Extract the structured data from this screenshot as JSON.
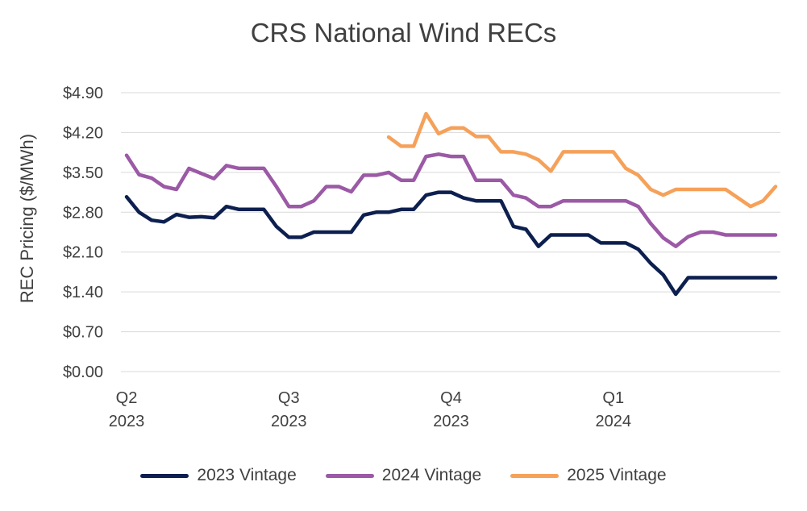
{
  "chart_data": {
    "type": "line",
    "title": "CRS National Wind RECs",
    "xlabel": "",
    "ylabel": "REC Pricing ($/MWh)",
    "ylim": [
      0,
      4.9
    ],
    "y_ticks": [
      0,
      0.7,
      1.4,
      2.1,
      2.8,
      3.5,
      4.2,
      4.9
    ],
    "y_tick_labels": [
      "$0.00",
      "$0.70",
      "$1.40",
      "$2.10",
      "$2.80",
      "$3.50",
      "$4.20",
      "$4.90"
    ],
    "x_range": [
      0,
      52
    ],
    "x_ticks": [
      {
        "x": 0,
        "line1": "Q2",
        "line2": "2023"
      },
      {
        "x": 13,
        "line1": "Q3",
        "line2": "2023"
      },
      {
        "x": 26,
        "line1": "Q4",
        "line2": "2023"
      },
      {
        "x": 39,
        "line1": "Q1",
        "line2": "2024"
      }
    ],
    "series": [
      {
        "name": "2023 Vintage",
        "color": "#0c1f4f",
        "points": [
          [
            0,
            3.07
          ],
          [
            1,
            2.8
          ],
          [
            2,
            2.66
          ],
          [
            3,
            2.63
          ],
          [
            4,
            2.76
          ],
          [
            5,
            2.71
          ],
          [
            6,
            2.72
          ],
          [
            7,
            2.7
          ],
          [
            8,
            2.9
          ],
          [
            9,
            2.85
          ],
          [
            10,
            2.85
          ],
          [
            11,
            2.85
          ],
          [
            12,
            2.55
          ],
          [
            13,
            2.36
          ],
          [
            14,
            2.36
          ],
          [
            15,
            2.45
          ],
          [
            16,
            2.45
          ],
          [
            17,
            2.45
          ],
          [
            18,
            2.45
          ],
          [
            19,
            2.75
          ],
          [
            20,
            2.8
          ],
          [
            21,
            2.8
          ],
          [
            22,
            2.85
          ],
          [
            23,
            2.85
          ],
          [
            24,
            3.1
          ],
          [
            25,
            3.15
          ],
          [
            26,
            3.15
          ],
          [
            27,
            3.05
          ],
          [
            28,
            3.0
          ],
          [
            29,
            3.0
          ],
          [
            30,
            3.0
          ],
          [
            31,
            2.55
          ],
          [
            32,
            2.5
          ],
          [
            33,
            2.2
          ],
          [
            34,
            2.4
          ],
          [
            35,
            2.4
          ],
          [
            36,
            2.4
          ],
          [
            37,
            2.4
          ],
          [
            38,
            2.26
          ],
          [
            39,
            2.26
          ],
          [
            40,
            2.26
          ],
          [
            41,
            2.15
          ],
          [
            42,
            1.9
          ],
          [
            43,
            1.7
          ],
          [
            44,
            1.36
          ],
          [
            45,
            1.65
          ],
          [
            46,
            1.65
          ],
          [
            47,
            1.65
          ],
          [
            48,
            1.65
          ],
          [
            49,
            1.65
          ],
          [
            50,
            1.65
          ],
          [
            51,
            1.65
          ],
          [
            52,
            1.65
          ]
        ]
      },
      {
        "name": "2024 Vintage",
        "color": "#9b59a6",
        "points": [
          [
            0,
            3.8
          ],
          [
            1,
            3.46
          ],
          [
            2,
            3.4
          ],
          [
            3,
            3.25
          ],
          [
            4,
            3.2
          ],
          [
            5,
            3.57
          ],
          [
            6,
            3.48
          ],
          [
            7,
            3.39
          ],
          [
            8,
            3.62
          ],
          [
            9,
            3.57
          ],
          [
            10,
            3.57
          ],
          [
            11,
            3.57
          ],
          [
            12,
            3.25
          ],
          [
            13,
            2.9
          ],
          [
            14,
            2.9
          ],
          [
            15,
            3.0
          ],
          [
            16,
            3.25
          ],
          [
            17,
            3.25
          ],
          [
            18,
            3.16
          ],
          [
            19,
            3.45
          ],
          [
            20,
            3.45
          ],
          [
            21,
            3.5
          ],
          [
            22,
            3.36
          ],
          [
            23,
            3.36
          ],
          [
            24,
            3.78
          ],
          [
            25,
            3.82
          ],
          [
            26,
            3.78
          ],
          [
            27,
            3.78
          ],
          [
            28,
            3.36
          ],
          [
            29,
            3.36
          ],
          [
            30,
            3.36
          ],
          [
            31,
            3.1
          ],
          [
            32,
            3.05
          ],
          [
            33,
            2.9
          ],
          [
            34,
            2.9
          ],
          [
            35,
            3.0
          ],
          [
            36,
            3.0
          ],
          [
            37,
            3.0
          ],
          [
            38,
            3.0
          ],
          [
            39,
            3.0
          ],
          [
            40,
            3.0
          ],
          [
            41,
            2.9
          ],
          [
            42,
            2.6
          ],
          [
            43,
            2.35
          ],
          [
            44,
            2.2
          ],
          [
            45,
            2.37
          ],
          [
            46,
            2.45
          ],
          [
            47,
            2.45
          ],
          [
            48,
            2.4
          ],
          [
            49,
            2.4
          ],
          [
            50,
            2.4
          ],
          [
            51,
            2.4
          ],
          [
            52,
            2.4
          ]
        ]
      },
      {
        "name": "2025 Vintage",
        "color": "#f5a15a",
        "points": [
          [
            21,
            4.12
          ],
          [
            22,
            3.96
          ],
          [
            23,
            3.96
          ],
          [
            24,
            4.53
          ],
          [
            25,
            4.18
          ],
          [
            26,
            4.28
          ],
          [
            27,
            4.28
          ],
          [
            28,
            4.13
          ],
          [
            29,
            4.13
          ],
          [
            30,
            3.86
          ],
          [
            31,
            3.86
          ],
          [
            32,
            3.82
          ],
          [
            33,
            3.72
          ],
          [
            34,
            3.52
          ],
          [
            35,
            3.86
          ],
          [
            36,
            3.86
          ],
          [
            37,
            3.86
          ],
          [
            38,
            3.86
          ],
          [
            39,
            3.86
          ],
          [
            40,
            3.57
          ],
          [
            41,
            3.45
          ],
          [
            42,
            3.2
          ],
          [
            43,
            3.1
          ],
          [
            44,
            3.2
          ],
          [
            45,
            3.2
          ],
          [
            46,
            3.2
          ],
          [
            47,
            3.2
          ],
          [
            48,
            3.2
          ],
          [
            49,
            3.05
          ],
          [
            50,
            2.9
          ],
          [
            51,
            3.0
          ],
          [
            52,
            3.25
          ]
        ]
      }
    ],
    "grid": true,
    "legend": "bottom-center"
  }
}
